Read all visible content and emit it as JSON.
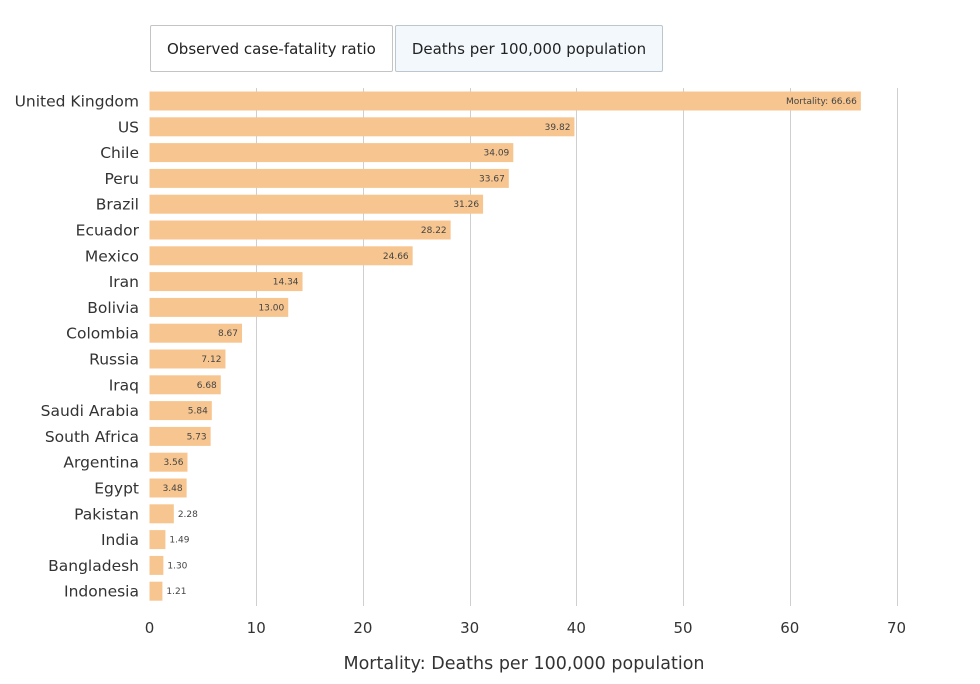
{
  "toggles": {
    "items": [
      {
        "label": "Observed case-fatality ratio",
        "active": false
      },
      {
        "label": "Deaths per 100,000 population",
        "active": true
      }
    ]
  },
  "colors": {
    "bar": "#f7c690",
    "grid": "#cfcfcf",
    "active_toggle_bg": "#f3f8fc"
  },
  "chart_data": {
    "type": "bar",
    "orientation": "horizontal",
    "categories": [
      "United Kingdom",
      "US",
      "Chile",
      "Peru",
      "Brazil",
      "Ecuador",
      "Mexico",
      "Iran",
      "Bolivia",
      "Colombia",
      "Russia",
      "Iraq",
      "Saudi Arabia",
      "South Africa",
      "Argentina",
      "Egypt",
      "Pakistan",
      "India",
      "Bangladesh",
      "Indonesia"
    ],
    "values": [
      66.66,
      39.82,
      34.09,
      33.67,
      31.26,
      28.22,
      24.66,
      14.34,
      13.0,
      8.67,
      7.12,
      6.68,
      5.84,
      5.73,
      3.56,
      3.48,
      2.28,
      1.49,
      1.3,
      1.21
    ],
    "value_labels": [
      "Mortality: 66.66",
      "39.82",
      "34.09",
      "33.67",
      "31.26",
      "28.22",
      "24.66",
      "14.34",
      "13.00",
      "8.67",
      "7.12",
      "6.68",
      "5.84",
      "5.73",
      "3.56",
      "3.48",
      "2.28",
      "1.49",
      "1.30",
      "1.21"
    ],
    "xlabel": "Mortality: Deaths per 100,000 population",
    "xlim": [
      0,
      70
    ],
    "xticks": [
      0,
      10,
      20,
      30,
      40,
      50,
      60,
      70
    ],
    "xtick_labels": [
      "0",
      "10",
      "20",
      "30",
      "40",
      "50",
      "60",
      "70"
    ],
    "grid": true,
    "legend": "none"
  }
}
